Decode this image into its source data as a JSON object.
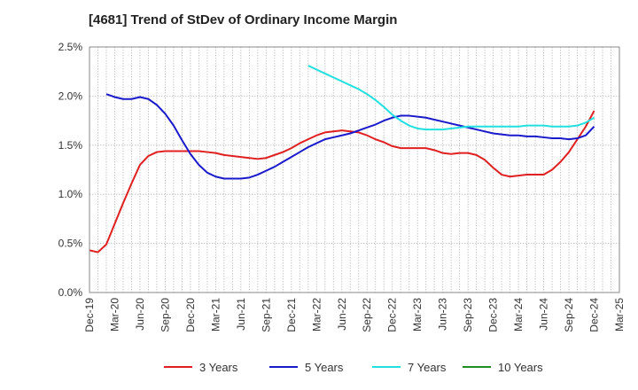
{
  "chart_data": {
    "type": "line",
    "title": "[4681]  Trend of StDev of Ordinary Income Margin",
    "xlabel": "",
    "ylabel": "",
    "x_ticks": [
      "Dec-19",
      "Mar-20",
      "Jun-20",
      "Sep-20",
      "Dec-20",
      "Mar-21",
      "Jun-21",
      "Sep-21",
      "Dec-21",
      "Mar-22",
      "Jun-22",
      "Sep-22",
      "Dec-22",
      "Mar-23",
      "Jun-23",
      "Sep-23",
      "Dec-23",
      "Mar-24",
      "Jun-24",
      "Sep-24",
      "Dec-24",
      "Mar-25"
    ],
    "y_ticks": [
      "0.0%",
      "0.5%",
      "1.0%",
      "1.5%",
      "2.0%",
      "2.5%"
    ],
    "ylim": [
      0,
      2.5
    ],
    "y_unit": "%",
    "grid": true,
    "legend_position": "bottom",
    "series": [
      {
        "name": "3 Years",
        "color": "#e02020",
        "points": [
          [
            "Dec-19",
            0.43
          ],
          [
            "Jan-20",
            0.41
          ],
          [
            "Feb-20",
            0.49
          ],
          [
            "Mar-20",
            0.7
          ],
          [
            "Apr-20",
            0.91
          ],
          [
            "May-20",
            1.11
          ],
          [
            "Jun-20",
            1.3
          ],
          [
            "Jul-20",
            1.39
          ],
          [
            "Aug-20",
            1.43
          ],
          [
            "Sep-20",
            1.44
          ],
          [
            "Oct-20",
            1.44
          ],
          [
            "Nov-20",
            1.44
          ],
          [
            "Dec-20",
            1.44
          ],
          [
            "Jan-21",
            1.44
          ],
          [
            "Feb-21",
            1.43
          ],
          [
            "Mar-21",
            1.42
          ],
          [
            "Apr-21",
            1.4
          ],
          [
            "May-21",
            1.39
          ],
          [
            "Jun-21",
            1.38
          ],
          [
            "Jul-21",
            1.37
          ],
          [
            "Aug-21",
            1.36
          ],
          [
            "Sep-21",
            1.37
          ],
          [
            "Oct-21",
            1.4
          ],
          [
            "Nov-21",
            1.43
          ],
          [
            "Dec-21",
            1.47
          ],
          [
            "Jan-22",
            1.52
          ],
          [
            "Feb-22",
            1.56
          ],
          [
            "Mar-22",
            1.6
          ],
          [
            "Apr-22",
            1.63
          ],
          [
            "May-22",
            1.64
          ],
          [
            "Jun-22",
            1.65
          ],
          [
            "Jul-22",
            1.64
          ],
          [
            "Aug-22",
            1.63
          ],
          [
            "Sep-22",
            1.6
          ],
          [
            "Oct-22",
            1.56
          ],
          [
            "Nov-22",
            1.53
          ],
          [
            "Dec-22",
            1.49
          ],
          [
            "Jan-23",
            1.47
          ],
          [
            "Feb-23",
            1.47
          ],
          [
            "Mar-23",
            1.47
          ],
          [
            "Apr-23",
            1.47
          ],
          [
            "May-23",
            1.45
          ],
          [
            "Jun-23",
            1.42
          ],
          [
            "Jul-23",
            1.41
          ],
          [
            "Aug-23",
            1.42
          ],
          [
            "Sep-23",
            1.42
          ],
          [
            "Oct-23",
            1.4
          ],
          [
            "Nov-23",
            1.35
          ],
          [
            "Dec-23",
            1.27
          ],
          [
            "Jan-24",
            1.2
          ],
          [
            "Feb-24",
            1.18
          ],
          [
            "Mar-24",
            1.19
          ],
          [
            "Apr-24",
            1.2
          ],
          [
            "May-24",
            1.2
          ],
          [
            "Jun-24",
            1.2
          ],
          [
            "Jul-24",
            1.25
          ],
          [
            "Aug-24",
            1.33
          ],
          [
            "Sep-24",
            1.43
          ],
          [
            "Oct-24",
            1.56
          ],
          [
            "Nov-24",
            1.69
          ],
          [
            "Dec-24",
            1.85
          ]
        ]
      },
      {
        "name": "5 Years",
        "color": "#1a1acc",
        "points": [
          [
            "Feb-20",
            2.02
          ],
          [
            "Mar-20",
            1.99
          ],
          [
            "Apr-20",
            1.97
          ],
          [
            "May-20",
            1.97
          ],
          [
            "Jun-20",
            1.99
          ],
          [
            "Jul-20",
            1.97
          ],
          [
            "Aug-20",
            1.91
          ],
          [
            "Sep-20",
            1.82
          ],
          [
            "Oct-20",
            1.7
          ],
          [
            "Nov-20",
            1.55
          ],
          [
            "Dec-20",
            1.41
          ],
          [
            "Jan-21",
            1.3
          ],
          [
            "Feb-21",
            1.22
          ],
          [
            "Mar-21",
            1.18
          ],
          [
            "Apr-21",
            1.16
          ],
          [
            "May-21",
            1.16
          ],
          [
            "Jun-21",
            1.16
          ],
          [
            "Jul-21",
            1.17
          ],
          [
            "Aug-21",
            1.2
          ],
          [
            "Sep-21",
            1.24
          ],
          [
            "Oct-21",
            1.28
          ],
          [
            "Nov-21",
            1.33
          ],
          [
            "Dec-21",
            1.38
          ],
          [
            "Jan-22",
            1.43
          ],
          [
            "Feb-22",
            1.48
          ],
          [
            "Mar-22",
            1.52
          ],
          [
            "Apr-22",
            1.56
          ],
          [
            "May-22",
            1.58
          ],
          [
            "Jun-22",
            1.6
          ],
          [
            "Jul-22",
            1.62
          ],
          [
            "Aug-22",
            1.65
          ],
          [
            "Sep-22",
            1.68
          ],
          [
            "Oct-22",
            1.71
          ],
          [
            "Nov-22",
            1.75
          ],
          [
            "Dec-22",
            1.78
          ],
          [
            "Jan-23",
            1.8
          ],
          [
            "Feb-23",
            1.8
          ],
          [
            "Mar-23",
            1.79
          ],
          [
            "Apr-23",
            1.78
          ],
          [
            "May-23",
            1.76
          ],
          [
            "Jun-23",
            1.74
          ],
          [
            "Jul-23",
            1.72
          ],
          [
            "Aug-23",
            1.7
          ],
          [
            "Sep-23",
            1.68
          ],
          [
            "Oct-23",
            1.66
          ],
          [
            "Nov-23",
            1.64
          ],
          [
            "Dec-23",
            1.62
          ],
          [
            "Jan-24",
            1.61
          ],
          [
            "Feb-24",
            1.6
          ],
          [
            "Mar-24",
            1.6
          ],
          [
            "Apr-24",
            1.59
          ],
          [
            "May-24",
            1.59
          ],
          [
            "Jun-24",
            1.58
          ],
          [
            "Jul-24",
            1.57
          ],
          [
            "Aug-24",
            1.57
          ],
          [
            "Sep-24",
            1.56
          ],
          [
            "Oct-24",
            1.57
          ],
          [
            "Nov-24",
            1.6
          ],
          [
            "Dec-24",
            1.69
          ]
        ]
      },
      {
        "name": "7 Years",
        "color": "#22e0e0",
        "points": [
          [
            "Feb-22",
            2.31
          ],
          [
            "Mar-22",
            2.27
          ],
          [
            "Apr-22",
            2.23
          ],
          [
            "May-22",
            2.19
          ],
          [
            "Jun-22",
            2.15
          ],
          [
            "Jul-22",
            2.11
          ],
          [
            "Aug-22",
            2.07
          ],
          [
            "Sep-22",
            2.02
          ],
          [
            "Oct-22",
            1.96
          ],
          [
            "Nov-22",
            1.89
          ],
          [
            "Dec-22",
            1.81
          ],
          [
            "Jan-23",
            1.75
          ],
          [
            "Feb-23",
            1.7
          ],
          [
            "Mar-23",
            1.67
          ],
          [
            "Apr-23",
            1.66
          ],
          [
            "May-23",
            1.66
          ],
          [
            "Jun-23",
            1.66
          ],
          [
            "Jul-23",
            1.67
          ],
          [
            "Aug-23",
            1.68
          ],
          [
            "Sep-23",
            1.69
          ],
          [
            "Oct-23",
            1.69
          ],
          [
            "Nov-23",
            1.69
          ],
          [
            "Dec-23",
            1.69
          ],
          [
            "Jan-24",
            1.69
          ],
          [
            "Feb-24",
            1.69
          ],
          [
            "Mar-24",
            1.69
          ],
          [
            "Apr-24",
            1.7
          ],
          [
            "May-24",
            1.7
          ],
          [
            "Jun-24",
            1.7
          ],
          [
            "Jul-24",
            1.69
          ],
          [
            "Aug-24",
            1.69
          ],
          [
            "Sep-24",
            1.69
          ],
          [
            "Oct-24",
            1.7
          ],
          [
            "Nov-24",
            1.73
          ],
          [
            "Dec-24",
            1.78
          ]
        ]
      },
      {
        "name": "10 Years",
        "color": "#228b22",
        "points": []
      }
    ]
  }
}
